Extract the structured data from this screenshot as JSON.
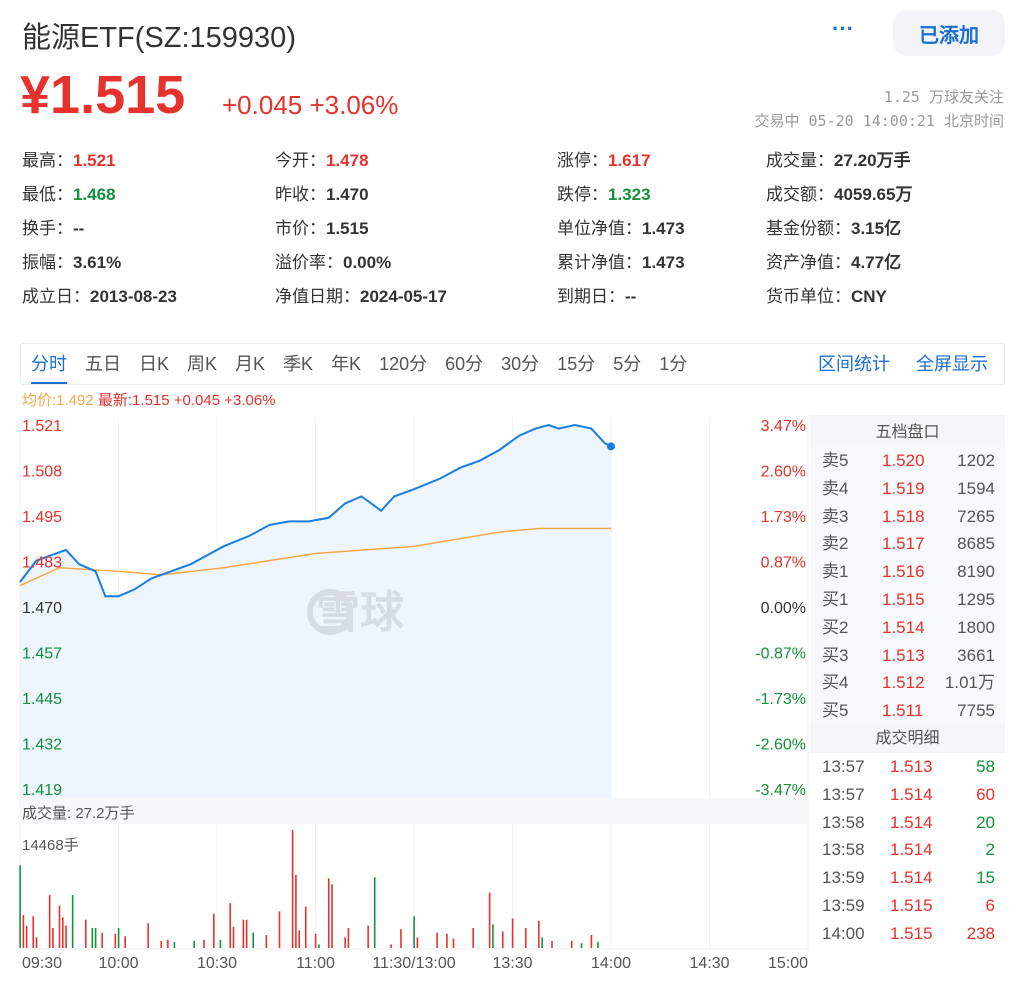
{
  "header": {
    "title": "能源ETF(SZ:159930)",
    "more_label": "···",
    "added_label": "已添加",
    "price": "¥1.515",
    "change": "+0.045",
    "change_pct": "+3.06%",
    "followers": "1.25 万球友关注",
    "status": "交易中 05-20 14:00:21 北京时间"
  },
  "quote": [
    [
      {
        "k": "最高：",
        "v": "1.521",
        "c": "red"
      },
      {
        "k": "今开：",
        "v": "1.478",
        "c": "red"
      },
      {
        "k": "涨停：",
        "v": "1.617",
        "c": "red"
      },
      {
        "k": "成交量：",
        "v": "27.20万手",
        "c": ""
      }
    ],
    [
      {
        "k": "最低：",
        "v": "1.468",
        "c": "green"
      },
      {
        "k": "昨收：",
        "v": "1.470",
        "c": ""
      },
      {
        "k": "跌停：",
        "v": "1.323",
        "c": "green"
      },
      {
        "k": "成交额：",
        "v": "4059.65万",
        "c": ""
      }
    ],
    [
      {
        "k": "换手：",
        "v": "--",
        "c": ""
      },
      {
        "k": "市价：",
        "v": "1.515",
        "c": ""
      },
      {
        "k": "单位净值：",
        "v": "1.473",
        "c": ""
      },
      {
        "k": "基金份额：",
        "v": "3.15亿",
        "c": ""
      }
    ],
    [
      {
        "k": "振幅：",
        "v": "3.61%",
        "c": ""
      },
      {
        "k": "溢价率：",
        "v": "0.00%",
        "c": ""
      },
      {
        "k": "累计净值：",
        "v": "1.473",
        "c": ""
      },
      {
        "k": "资产净值：",
        "v": "4.77亿",
        "c": ""
      }
    ],
    [
      {
        "k": "成立日：",
        "v": "2013-08-23",
        "c": ""
      },
      {
        "k": "净值日期：",
        "v": "2024-05-17",
        "c": ""
      },
      {
        "k": "到期日：",
        "v": "--",
        "c": ""
      },
      {
        "k": "货币单位：",
        "v": "CNY",
        "c": ""
      }
    ]
  ],
  "tabs": [
    "分时",
    "五日",
    "日K",
    "周K",
    "月K",
    "季K",
    "年K",
    "120分",
    "60分",
    "30分",
    "15分",
    "5分",
    "1分"
  ],
  "active_tab": "分时",
  "tab_actions": [
    "区间统计",
    "全屏显示"
  ],
  "legend": {
    "avg": "均价:1.492",
    "latest": "最新:1.515 +0.045 +3.06%"
  },
  "watermark": "雪球",
  "colors": {
    "up": "#e5322d",
    "down": "#12923c",
    "price_line": "#1a7de0",
    "avg_line": "#f0a848",
    "fill": "#eef5fd"
  },
  "chart_data": {
    "type": "line",
    "ylim": [
      1.419,
      1.521
    ],
    "y_ticks": [
      "1.521",
      "1.508",
      "1.495",
      "1.483",
      "1.470",
      "1.457",
      "1.445",
      "1.432",
      "1.419"
    ],
    "pct_ticks": [
      "3.47%",
      "2.60%",
      "1.73%",
      "0.87%",
      "0.00%",
      "-0.87%",
      "-1.73%",
      "-2.60%",
      "-3.47%"
    ],
    "x_ticks": [
      "09:30",
      "10:00",
      "10:30",
      "11:00",
      "11:30/13:00",
      "13:30",
      "14:00",
      "14:30",
      "15:00"
    ],
    "price": [
      [
        "09:30",
        1.477
      ],
      [
        "09:35",
        1.483
      ],
      [
        "09:44",
        1.486
      ],
      [
        "09:48",
        1.482
      ],
      [
        "09:53",
        1.48
      ],
      [
        "09:56",
        1.473
      ],
      [
        "10:00",
        1.473
      ],
      [
        "10:05",
        1.475
      ],
      [
        "10:10",
        1.478
      ],
      [
        "10:16",
        1.48
      ],
      [
        "10:22",
        1.482
      ],
      [
        "10:28",
        1.485
      ],
      [
        "10:32",
        1.487
      ],
      [
        "10:40",
        1.49
      ],
      [
        "10:46",
        1.493
      ],
      [
        "10:52",
        1.494
      ],
      [
        "10:58",
        1.494
      ],
      [
        "11:04",
        1.495
      ],
      [
        "11:09",
        1.499
      ],
      [
        "11:14",
        1.501
      ],
      [
        "11:20",
        1.497
      ],
      [
        "11:24",
        1.501
      ],
      [
        "13:00",
        1.503
      ],
      [
        "13:08",
        1.506
      ],
      [
        "13:14",
        1.509
      ],
      [
        "13:20",
        1.511
      ],
      [
        "13:26",
        1.514
      ],
      [
        "13:32",
        1.518
      ],
      [
        "13:37",
        1.52
      ],
      [
        "13:41",
        1.521
      ],
      [
        "13:44",
        1.52
      ],
      [
        "13:49",
        1.521
      ],
      [
        "13:54",
        1.52
      ],
      [
        "13:58",
        1.516
      ],
      [
        "14:00",
        1.515
      ]
    ],
    "avg": [
      [
        "09:30",
        1.476
      ],
      [
        "09:42",
        1.481
      ],
      [
        "10:00",
        1.48
      ],
      [
        "10:13",
        1.479
      ],
      [
        "10:32",
        1.481
      ],
      [
        "11:00",
        1.485
      ],
      [
        "11:30",
        1.487
      ],
      [
        "13:26",
        1.491
      ],
      [
        "13:38",
        1.492
      ],
      [
        "14:00",
        1.492
      ]
    ],
    "volume_label": "成交量: 27.2万手",
    "volume_max_label": "14468手",
    "volume": [
      [
        "09:30",
        10150,
        "down"
      ],
      [
        "09:31",
        4050,
        "up"
      ],
      [
        "09:32",
        2750,
        "up"
      ],
      [
        "09:34",
        3900,
        "up"
      ],
      [
        "09:35",
        1300,
        "up"
      ],
      [
        "09:39",
        6500,
        "up"
      ],
      [
        "09:40",
        2460,
        "up"
      ],
      [
        "09:42",
        5200,
        "up"
      ],
      [
        "09:43",
        3760,
        "up"
      ],
      [
        "09:44",
        2750,
        "up"
      ],
      [
        "09:46",
        6500,
        "down"
      ],
      [
        "09:50",
        3470,
        "up"
      ],
      [
        "09:52",
        2460,
        "down"
      ],
      [
        "09:53",
        2460,
        "down"
      ],
      [
        "09:55",
        1880,
        "up"
      ],
      [
        "09:59",
        1740,
        "up"
      ],
      [
        "10:00",
        2460,
        "down"
      ],
      [
        "10:02",
        1450,
        "up"
      ],
      [
        "10:09",
        3040,
        "up"
      ],
      [
        "10:13",
        870,
        "up"
      ],
      [
        "10:15",
        1010,
        "up"
      ],
      [
        "10:17",
        720,
        "down"
      ],
      [
        "10:23",
        870,
        "down"
      ],
      [
        "10:26",
        1010,
        "up"
      ],
      [
        "10:29",
        4200,
        "up"
      ],
      [
        "10:31",
        1010,
        "down"
      ],
      [
        "10:34",
        5500,
        "up"
      ],
      [
        "10:35",
        2600,
        "up"
      ],
      [
        "10:38",
        3470,
        "up"
      ],
      [
        "10:39",
        3470,
        "up"
      ],
      [
        "10:41",
        1880,
        "down"
      ],
      [
        "10:45",
        1590,
        "up"
      ],
      [
        "10:49",
        4490,
        "up"
      ],
      [
        "10:53",
        14468,
        "up"
      ],
      [
        "10:54",
        8970,
        "up"
      ],
      [
        "10:55",
        2170,
        "up"
      ],
      [
        "10:57",
        5060,
        "up"
      ],
      [
        "11:00",
        1740,
        "up"
      ],
      [
        "11:01",
        430,
        "down"
      ],
      [
        "11:04",
        8540,
        "up"
      ],
      [
        "11:05",
        7810,
        "up"
      ],
      [
        "11:09",
        1300,
        "up"
      ],
      [
        "11:10",
        2460,
        "up"
      ],
      [
        "11:16",
        2750,
        "up"
      ],
      [
        "11:18",
        8680,
        "down"
      ],
      [
        "11:23",
        430,
        "up"
      ],
      [
        "11:26",
        2310,
        "up"
      ],
      [
        "13:00",
        3900,
        "down"
      ],
      [
        "13:01",
        1300,
        "up"
      ],
      [
        "13:07",
        1880,
        "up"
      ],
      [
        "13:10",
        1740,
        "up"
      ],
      [
        "13:12",
        1160,
        "up"
      ],
      [
        "13:18",
        2460,
        "up"
      ],
      [
        "13:23",
        6800,
        "up"
      ],
      [
        "13:24",
        2890,
        "down"
      ],
      [
        "13:27",
        2030,
        "up"
      ],
      [
        "13:30",
        3620,
        "up"
      ],
      [
        "13:34",
        2460,
        "up"
      ],
      [
        "13:38",
        3330,
        "up"
      ],
      [
        "13:39",
        1300,
        "down"
      ],
      [
        "13:42",
        870,
        "up"
      ],
      [
        "13:48",
        870,
        "up"
      ],
      [
        "13:51",
        580,
        "down"
      ],
      [
        "13:54",
        1590,
        "up"
      ],
      [
        "13:56",
        720,
        "down"
      ]
    ]
  },
  "orderbook": {
    "title": "五档盘口",
    "rows": [
      [
        "卖5",
        "1.520",
        "1202"
      ],
      [
        "卖4",
        "1.519",
        "1594"
      ],
      [
        "卖3",
        "1.518",
        "7265"
      ],
      [
        "卖2",
        "1.517",
        "8685"
      ],
      [
        "卖1",
        "1.516",
        "8190"
      ],
      [
        "买1",
        "1.515",
        "1295"
      ],
      [
        "买2",
        "1.514",
        "1800"
      ],
      [
        "买3",
        "1.513",
        "3661"
      ],
      [
        "买4",
        "1.512",
        "1.01万"
      ],
      [
        "买5",
        "1.511",
        "7755"
      ]
    ]
  },
  "trades": {
    "title": "成交明细",
    "rows": [
      [
        "13:57",
        "1.513",
        "58",
        "down"
      ],
      [
        "13:57",
        "1.514",
        "60",
        "up"
      ],
      [
        "13:58",
        "1.514",
        "20",
        "down"
      ],
      [
        "13:58",
        "1.514",
        "2",
        "down"
      ],
      [
        "13:59",
        "1.514",
        "15",
        "down"
      ],
      [
        "13:59",
        "1.515",
        "6",
        "up"
      ],
      [
        "14:00",
        "1.515",
        "238",
        "up"
      ]
    ]
  }
}
